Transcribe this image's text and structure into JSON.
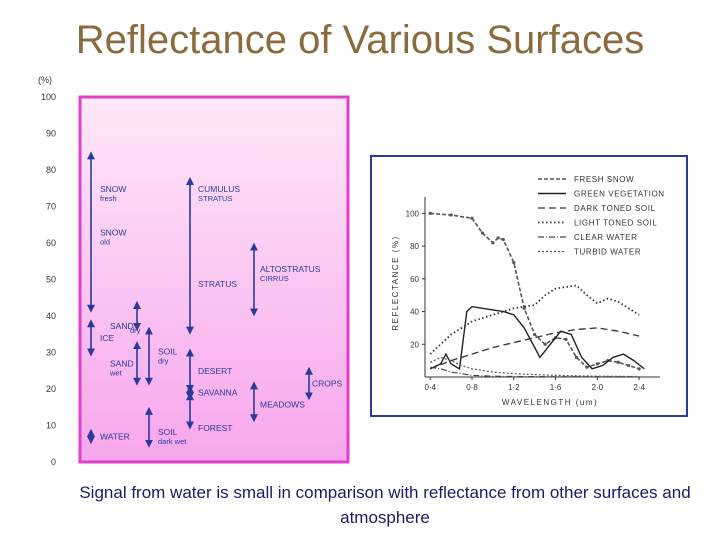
{
  "slide": {
    "title": "Reflectance of Various Surfaces",
    "caption": "Signal from water is small in comparison with reflectance from other surfaces and atmosphere"
  },
  "chart_data": [
    {
      "type": "range",
      "y_unit": "(%)",
      "ylim": [
        0,
        100
      ],
      "yticks": [
        "0",
        "10",
        "20",
        "30",
        "40",
        "50",
        "60",
        "70",
        "80",
        "90",
        "100"
      ],
      "colors": {
        "frame": "#e040c8",
        "fill_top": "#ffe8f8",
        "fill_bottom": "#f7a6ec",
        "arrows": "#2a3a9a"
      },
      "ranges": [
        {
          "label": "SNOW",
          "sub": "fresh",
          "low": 42,
          "high": 84
        },
        {
          "label": "SNOW",
          "sub": "old",
          "low": 42,
          "high": 84
        },
        {
          "label": "SAND",
          "sub": "dry",
          "low": 37,
          "high": 43
        },
        {
          "label": "ICE",
          "sub": "",
          "low": 30,
          "high": 38
        },
        {
          "label": "SAND",
          "sub": "wet",
          "low": 22,
          "high": 32
        },
        {
          "label": "WATER",
          "sub": "",
          "low": 6,
          "high": 8
        },
        {
          "label": "CUMULUS",
          "sub": "STRATUS",
          "low": 36,
          "high": 77
        },
        {
          "label": "SOIL",
          "sub": "dry",
          "low": 22,
          "high": 36
        },
        {
          "label": "SOIL",
          "sub": "dark wet",
          "low": 5,
          "high": 14
        },
        {
          "label": "ALTOSTRATUS",
          "sub": "CIRRUS",
          "low": 41,
          "high": 59
        },
        {
          "label": "STRATUS",
          "sub": "",
          "low": 41,
          "high": 59
        },
        {
          "label": "DESERT",
          "sub": "",
          "low": 20,
          "high": 30
        },
        {
          "label": "SAVANNA",
          "sub": "",
          "low": 18,
          "high": 20
        },
        {
          "label": "FOREST",
          "sub": "",
          "low": 10,
          "high": 18
        },
        {
          "label": "MEADOWS",
          "sub": "",
          "low": 12,
          "high": 21
        },
        {
          "label": "CROPS",
          "sub": "",
          "low": 18,
          "high": 25
        }
      ]
    },
    {
      "type": "line",
      "xlabel": "WAVELENGTH (um)",
      "ylabel": "REFLECTANCE (%)",
      "xlim": [
        0.35,
        2.6
      ],
      "ylim": [
        0,
        110
      ],
      "xticks": [
        0.4,
        0.8,
        1.2,
        1.6,
        2.0,
        2.4
      ],
      "xtick_labels": [
        "0·4",
        "0·8",
        "1·2",
        "1·6",
        "2·0",
        "2·4"
      ],
      "yticks": [
        20,
        40,
        60,
        80,
        100
      ],
      "grid": false,
      "legend_position": "top-right",
      "series": [
        {
          "name": "FRESH SNOW",
          "style": "dash-dot-markers",
          "x": [
            0.4,
            0.6,
            0.8,
            0.9,
            1.0,
            1.05,
            1.1,
            1.2,
            1.3,
            1.4,
            1.5,
            1.6,
            1.7,
            1.8,
            1.9,
            2.0,
            2.1,
            2.2,
            2.3,
            2.4
          ],
          "y": [
            100,
            99,
            97,
            88,
            82,
            85,
            84,
            70,
            42,
            26,
            20,
            24,
            23,
            12,
            6,
            8,
            10,
            9,
            7,
            5
          ]
        },
        {
          "name": "GREEN VEGETATION",
          "style": "solid",
          "x": [
            0.4,
            0.5,
            0.55,
            0.6,
            0.68,
            0.75,
            0.8,
            0.9,
            1.0,
            1.1,
            1.2,
            1.3,
            1.4,
            1.45,
            1.55,
            1.65,
            1.75,
            1.85,
            1.95,
            2.05,
            2.15,
            2.25,
            2.35,
            2.45
          ],
          "y": [
            5,
            8,
            14,
            8,
            5,
            40,
            43,
            42,
            41,
            40,
            38,
            30,
            18,
            12,
            20,
            28,
            26,
            12,
            5,
            7,
            12,
            14,
            10,
            5
          ]
        },
        {
          "name": "DARK TONED SOIL",
          "style": "dashed",
          "x": [
            0.4,
            0.6,
            0.8,
            1.0,
            1.2,
            1.4,
            1.6,
            1.8,
            2.0,
            2.2,
            2.4
          ],
          "y": [
            5,
            10,
            14,
            18,
            21,
            24,
            27,
            29,
            30,
            28,
            25
          ]
        },
        {
          "name": "LIGHT TONED SOIL",
          "style": "dotted",
          "x": [
            0.4,
            0.6,
            0.8,
            1.0,
            1.2,
            1.4,
            1.5,
            1.6,
            1.8,
            1.9,
            2.0,
            2.1,
            2.2,
            2.3,
            2.4
          ],
          "y": [
            14,
            26,
            34,
            38,
            42,
            44,
            50,
            54,
            56,
            50,
            45,
            48,
            46,
            42,
            38
          ]
        },
        {
          "name": "CLEAR WATER",
          "style": "dot-dash",
          "x": [
            0.4,
            0.5,
            0.6,
            0.7,
            0.8,
            1.0,
            1.2,
            1.6,
            2.0,
            2.4
          ],
          "y": [
            6,
            5,
            3,
            2,
            1,
            0.5,
            0.3,
            0.2,
            0.2,
            0.2
          ]
        },
        {
          "name": "TURBID WATER",
          "style": "fine-dash",
          "x": [
            0.4,
            0.5,
            0.6,
            0.7,
            0.8,
            1.0,
            1.2,
            1.6,
            2.0,
            2.4
          ],
          "y": [
            9,
            12,
            10,
            7,
            5,
            3,
            2,
            1,
            0.5,
            0.3
          ]
        }
      ]
    }
  ]
}
